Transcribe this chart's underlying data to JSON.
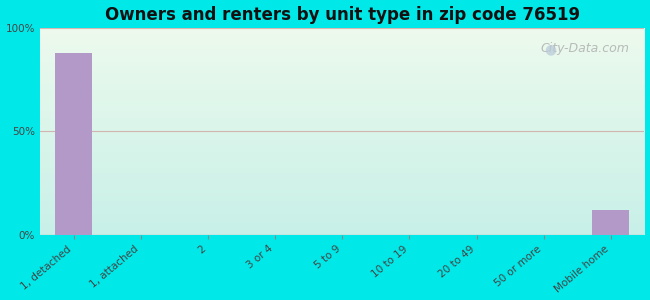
{
  "title": "Owners and renters by unit type in zip code 76519",
  "categories": [
    "1, detached",
    "1, attached",
    "2",
    "3 or 4",
    "5 to 9",
    "10 to 19",
    "20 to 49",
    "50 or more",
    "Mobile home"
  ],
  "values": [
    88,
    0,
    0,
    0,
    0,
    0,
    0,
    0,
    12
  ],
  "bar_color": "#b399c8",
  "bar_width": 0.55,
  "ylim": [
    0,
    100
  ],
  "yticks": [
    0,
    50,
    100
  ],
  "ytick_labels": [
    "0%",
    "50%",
    "100%"
  ],
  "background_outer": "#00e8e8",
  "background_inner": "#e8f5e9",
  "grid_color": "#cc8888",
  "title_fontsize": 12,
  "tick_fontsize": 7.5,
  "watermark": "City-Data.com",
  "watermark_fontsize": 9,
  "figsize": [
    6.5,
    3.0
  ],
  "dpi": 100
}
